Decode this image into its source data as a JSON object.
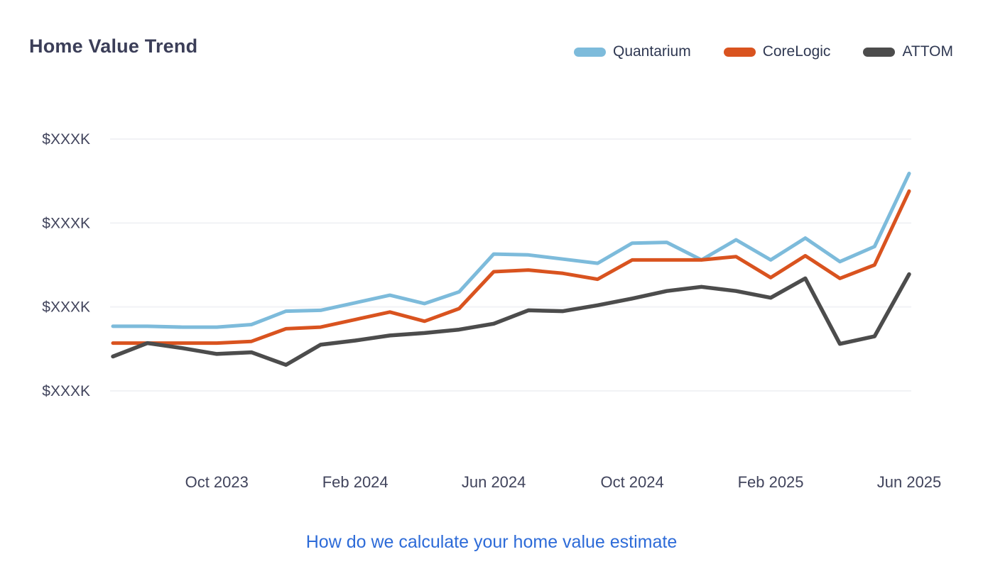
{
  "header": {
    "title": "Home Value Trend"
  },
  "legend": {
    "items": [
      {
        "label": "Quantarium",
        "color": "#7dbbdb"
      },
      {
        "label": "CoreLogic",
        "color": "#d9531f"
      },
      {
        "label": "ATTOM",
        "color": "#4c4c4c"
      }
    ]
  },
  "chart_data": {
    "type": "line",
    "title": "Home Value Trend",
    "x": [
      "Jul 2023",
      "Aug 2023",
      "Sep 2023",
      "Oct 2023",
      "Nov 2023",
      "Dec 2023",
      "Jan 2024",
      "Feb 2024",
      "Mar 2024",
      "Apr 2024",
      "May 2024",
      "Jun 2024",
      "Jul 2024",
      "Aug 2024",
      "Sep 2024",
      "Oct 2024",
      "Nov 2024",
      "Dec 2024",
      "Jan 2025",
      "Feb 2025",
      "Mar 2025",
      "Apr 2025",
      "May 2025",
      "Jun 2025"
    ],
    "x_tick_indices": [
      3,
      7,
      11,
      15,
      19,
      23
    ],
    "x_tick_labels": [
      "Oct 2023",
      "Feb 2024",
      "Jun 2024",
      "Oct 2024",
      "Feb 2025",
      "Jun 2025"
    ],
    "y_tick_labels": [
      "$XXXK",
      "$XXXK",
      "$XXXK",
      "$XXXK"
    ],
    "y_unit": "gridline units: dollar tick labels are redacted as $XXXK on screen; 0 = bottom gridline, 1 = one gridline spacing",
    "ylim": [
      0,
      3
    ],
    "grid": "horizontal-only",
    "legend_position": "top-right",
    "series": [
      {
        "name": "Quantarium",
        "color": "#7dbbdb",
        "values": [
          0.77,
          0.77,
          0.76,
          0.76,
          0.79,
          0.95,
          0.96,
          1.05,
          1.14,
          1.04,
          1.18,
          1.63,
          1.62,
          1.57,
          1.52,
          1.76,
          1.77,
          1.56,
          1.8,
          1.56,
          1.82,
          1.54,
          1.72,
          2.59
        ]
      },
      {
        "name": "CoreLogic",
        "color": "#d9531f",
        "values": [
          0.57,
          0.57,
          0.57,
          0.57,
          0.59,
          0.74,
          0.76,
          0.85,
          0.94,
          0.83,
          0.98,
          1.42,
          1.44,
          1.4,
          1.33,
          1.56,
          1.56,
          1.56,
          1.6,
          1.35,
          1.61,
          1.34,
          1.5,
          2.38
        ]
      },
      {
        "name": "ATTOM",
        "color": "#4c4c4c",
        "values": [
          0.41,
          0.57,
          0.51,
          0.44,
          0.46,
          0.31,
          0.55,
          0.6,
          0.66,
          0.69,
          0.73,
          0.8,
          0.96,
          0.95,
          1.02,
          1.1,
          1.19,
          1.24,
          1.19,
          1.11,
          1.34,
          0.56,
          0.65,
          1.39
        ]
      }
    ]
  },
  "footer": {
    "link_label": "How do we calculate your home value estimate"
  }
}
